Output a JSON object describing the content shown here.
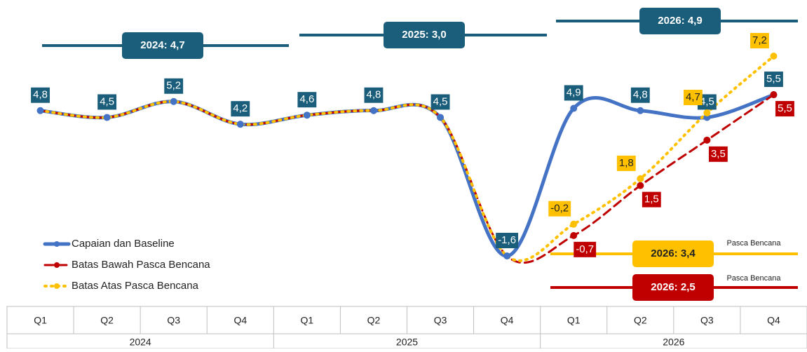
{
  "chart_data": {
    "type": "line",
    "categories": [
      "Q1",
      "Q2",
      "Q3",
      "Q4",
      "Q1",
      "Q2",
      "Q3",
      "Q4",
      "Q1",
      "Q2",
      "Q3",
      "Q4"
    ],
    "years": [
      "2024",
      "2025",
      "2026"
    ],
    "series": [
      {
        "name": "Capaian dan Baseline",
        "color": "#4472c4",
        "style": "solid",
        "values": [
          4.8,
          4.5,
          5.2,
          4.2,
          4.6,
          4.8,
          4.5,
          -1.6,
          4.9,
          4.8,
          4.5,
          5.5
        ],
        "value_labels": [
          "4,8",
          "4,5",
          "5,2",
          "4,2",
          "4,6",
          "4,8",
          "4,5",
          "-1,6",
          "4,9",
          "4,8",
          "4,5",
          "5,5"
        ]
      },
      {
        "name": "Batas Bawah Pasca Bencana",
        "color": "#c00000",
        "style": "dashed",
        "values": [
          4.8,
          4.5,
          5.2,
          4.2,
          4.6,
          4.8,
          4.5,
          -1.6,
          -0.7,
          1.5,
          3.5,
          5.5
        ],
        "value_labels": [
          null,
          null,
          null,
          null,
          null,
          null,
          null,
          null,
          "-0,7",
          "1,5",
          "3,5",
          "5,5"
        ]
      },
      {
        "name": "Batas Atas Pasca Bencana",
        "color": "#ffc000",
        "style": "dotted",
        "values": [
          4.8,
          4.5,
          5.2,
          4.2,
          4.6,
          4.8,
          4.5,
          -1.6,
          -0.2,
          1.8,
          4.7,
          7.2
        ],
        "value_labels": [
          null,
          null,
          null,
          null,
          null,
          null,
          null,
          null,
          "-0,2",
          "1,8",
          "4,7",
          "7,2"
        ]
      }
    ],
    "annotations": [
      "2024: 4,7",
      "2025: 3,0",
      "2026: 4,9",
      "2026: 3,4",
      "Pasca Bencana",
      "2026: 2,5",
      "Pasca Bencana"
    ]
  }
}
